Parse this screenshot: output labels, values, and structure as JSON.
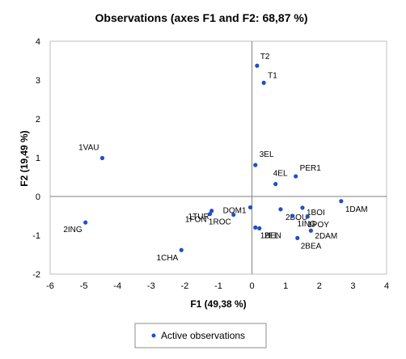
{
  "chart_data": {
    "type": "scatter",
    "title": "Observations (axes F1 and F2: 68,87 %)",
    "xlabel": "F1 (49,38 %)",
    "ylabel": "F2 (19,49 %)",
    "xlim": [
      -6,
      4
    ],
    "ylim": [
      -2,
      4
    ],
    "x_ticks": [
      -6,
      -5,
      -4,
      -3,
      -2,
      -1,
      0,
      1,
      2,
      3,
      4
    ],
    "y_ticks": [
      -2,
      -1,
      0,
      1,
      2,
      3,
      4
    ],
    "grid": false,
    "legend_position": "bottom",
    "series": [
      {
        "name": "Active observations",
        "color": "#1f4fc8",
        "points": [
          {
            "label": "T2",
            "x": 0.15,
            "y": 3.37
          },
          {
            "label": "T1",
            "x": 0.35,
            "y": 2.93
          },
          {
            "label": "1VAU",
            "x": -4.45,
            "y": 0.99
          },
          {
            "label": "3EL",
            "x": 0.1,
            "y": 0.81
          },
          {
            "label": "PER1",
            "x": 1.3,
            "y": 0.52
          },
          {
            "label": "4EL",
            "x": 0.7,
            "y": 0.32
          },
          {
            "label": "1DAM",
            "x": 2.65,
            "y": -0.12
          },
          {
            "label": "2ING",
            "x": -4.95,
            "y": -0.67
          },
          {
            "label": "DOM1",
            "x": -0.05,
            "y": -0.28
          },
          {
            "label": "1TUR",
            "x": -1.2,
            "y": -0.37
          },
          {
            "label": "1FON",
            "x": -1.25,
            "y": -0.45
          },
          {
            "label": "1ROC",
            "x": -0.55,
            "y": -0.47
          },
          {
            "label": "2BOU",
            "x": 0.85,
            "y": -0.33
          },
          {
            "label": "1BOI",
            "x": 1.5,
            "y": -0.29
          },
          {
            "label": "1ING",
            "x": 1.2,
            "y": -0.5
          },
          {
            "label": "1POY",
            "x": 1.65,
            "y": -0.52
          },
          {
            "label": "1BEN",
            "x": 0.1,
            "y": -0.8
          },
          {
            "label": "2EL",
            "x": 0.22,
            "y": -0.82
          },
          {
            "label": "2DAM",
            "x": 1.75,
            "y": -0.88
          },
          {
            "label": "2BEA",
            "x": 1.35,
            "y": -1.07
          },
          {
            "label": "1CHA",
            "x": -2.1,
            "y": -1.38
          }
        ]
      }
    ]
  }
}
